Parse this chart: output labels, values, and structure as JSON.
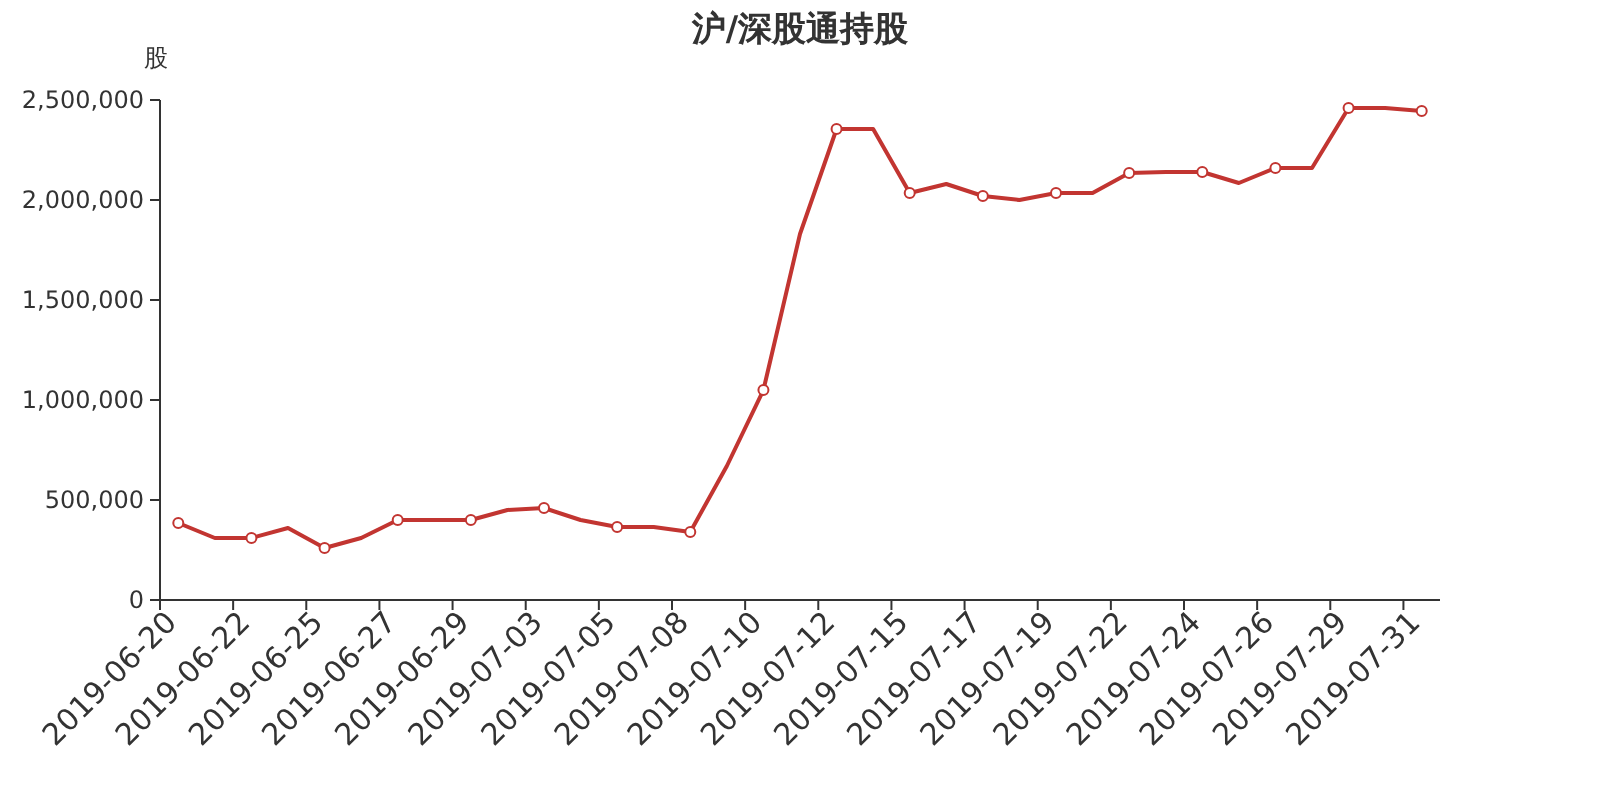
{
  "chart_data": {
    "type": "line",
    "title": "沪/深股通持股",
    "ylabel": "股",
    "categories": [
      "2019-06-20",
      null,
      "2019-06-22",
      null,
      "2019-06-25",
      null,
      "2019-06-27",
      null,
      "2019-06-29",
      null,
      "2019-07-03",
      null,
      "2019-07-05",
      null,
      "2019-07-08",
      null,
      "2019-07-10",
      null,
      "2019-07-12",
      null,
      "2019-07-15",
      null,
      "2019-07-17",
      null,
      "2019-07-19",
      null,
      "2019-07-22",
      null,
      "2019-07-24",
      null,
      "2019-07-26",
      null,
      "2019-07-29",
      null,
      "2019-07-31"
    ],
    "series": [
      {
        "color": "#c23531",
        "values": [
          385000,
          310000,
          310000,
          360000,
          260000,
          310000,
          400000,
          400000,
          400000,
          450000,
          460000,
          400000,
          365000,
          365000,
          340000,
          670000,
          1050000,
          1830000,
          2355000,
          2355000,
          2035000,
          2080000,
          2020000,
          2000000,
          2035000,
          2035000,
          2135000,
          2140000,
          2140000,
          2085000,
          2160000,
          2160000,
          2460000,
          2460000,
          2445000
        ]
      }
    ],
    "ylim": [
      0,
      2500000
    ],
    "yticks": [
      0,
      {
        "value": 500000,
        "label": "500,000"
      },
      {
        "value": 1000000,
        "label": "1,000,000"
      },
      {
        "value": 1500000,
        "label": "1,500,000"
      },
      {
        "value": 2000000,
        "label": "2,000,000"
      },
      {
        "value": 2500000,
        "label": "2,500,000"
      }
    ],
    "marker": "circle",
    "line_style": "solid",
    "grid": false
  }
}
